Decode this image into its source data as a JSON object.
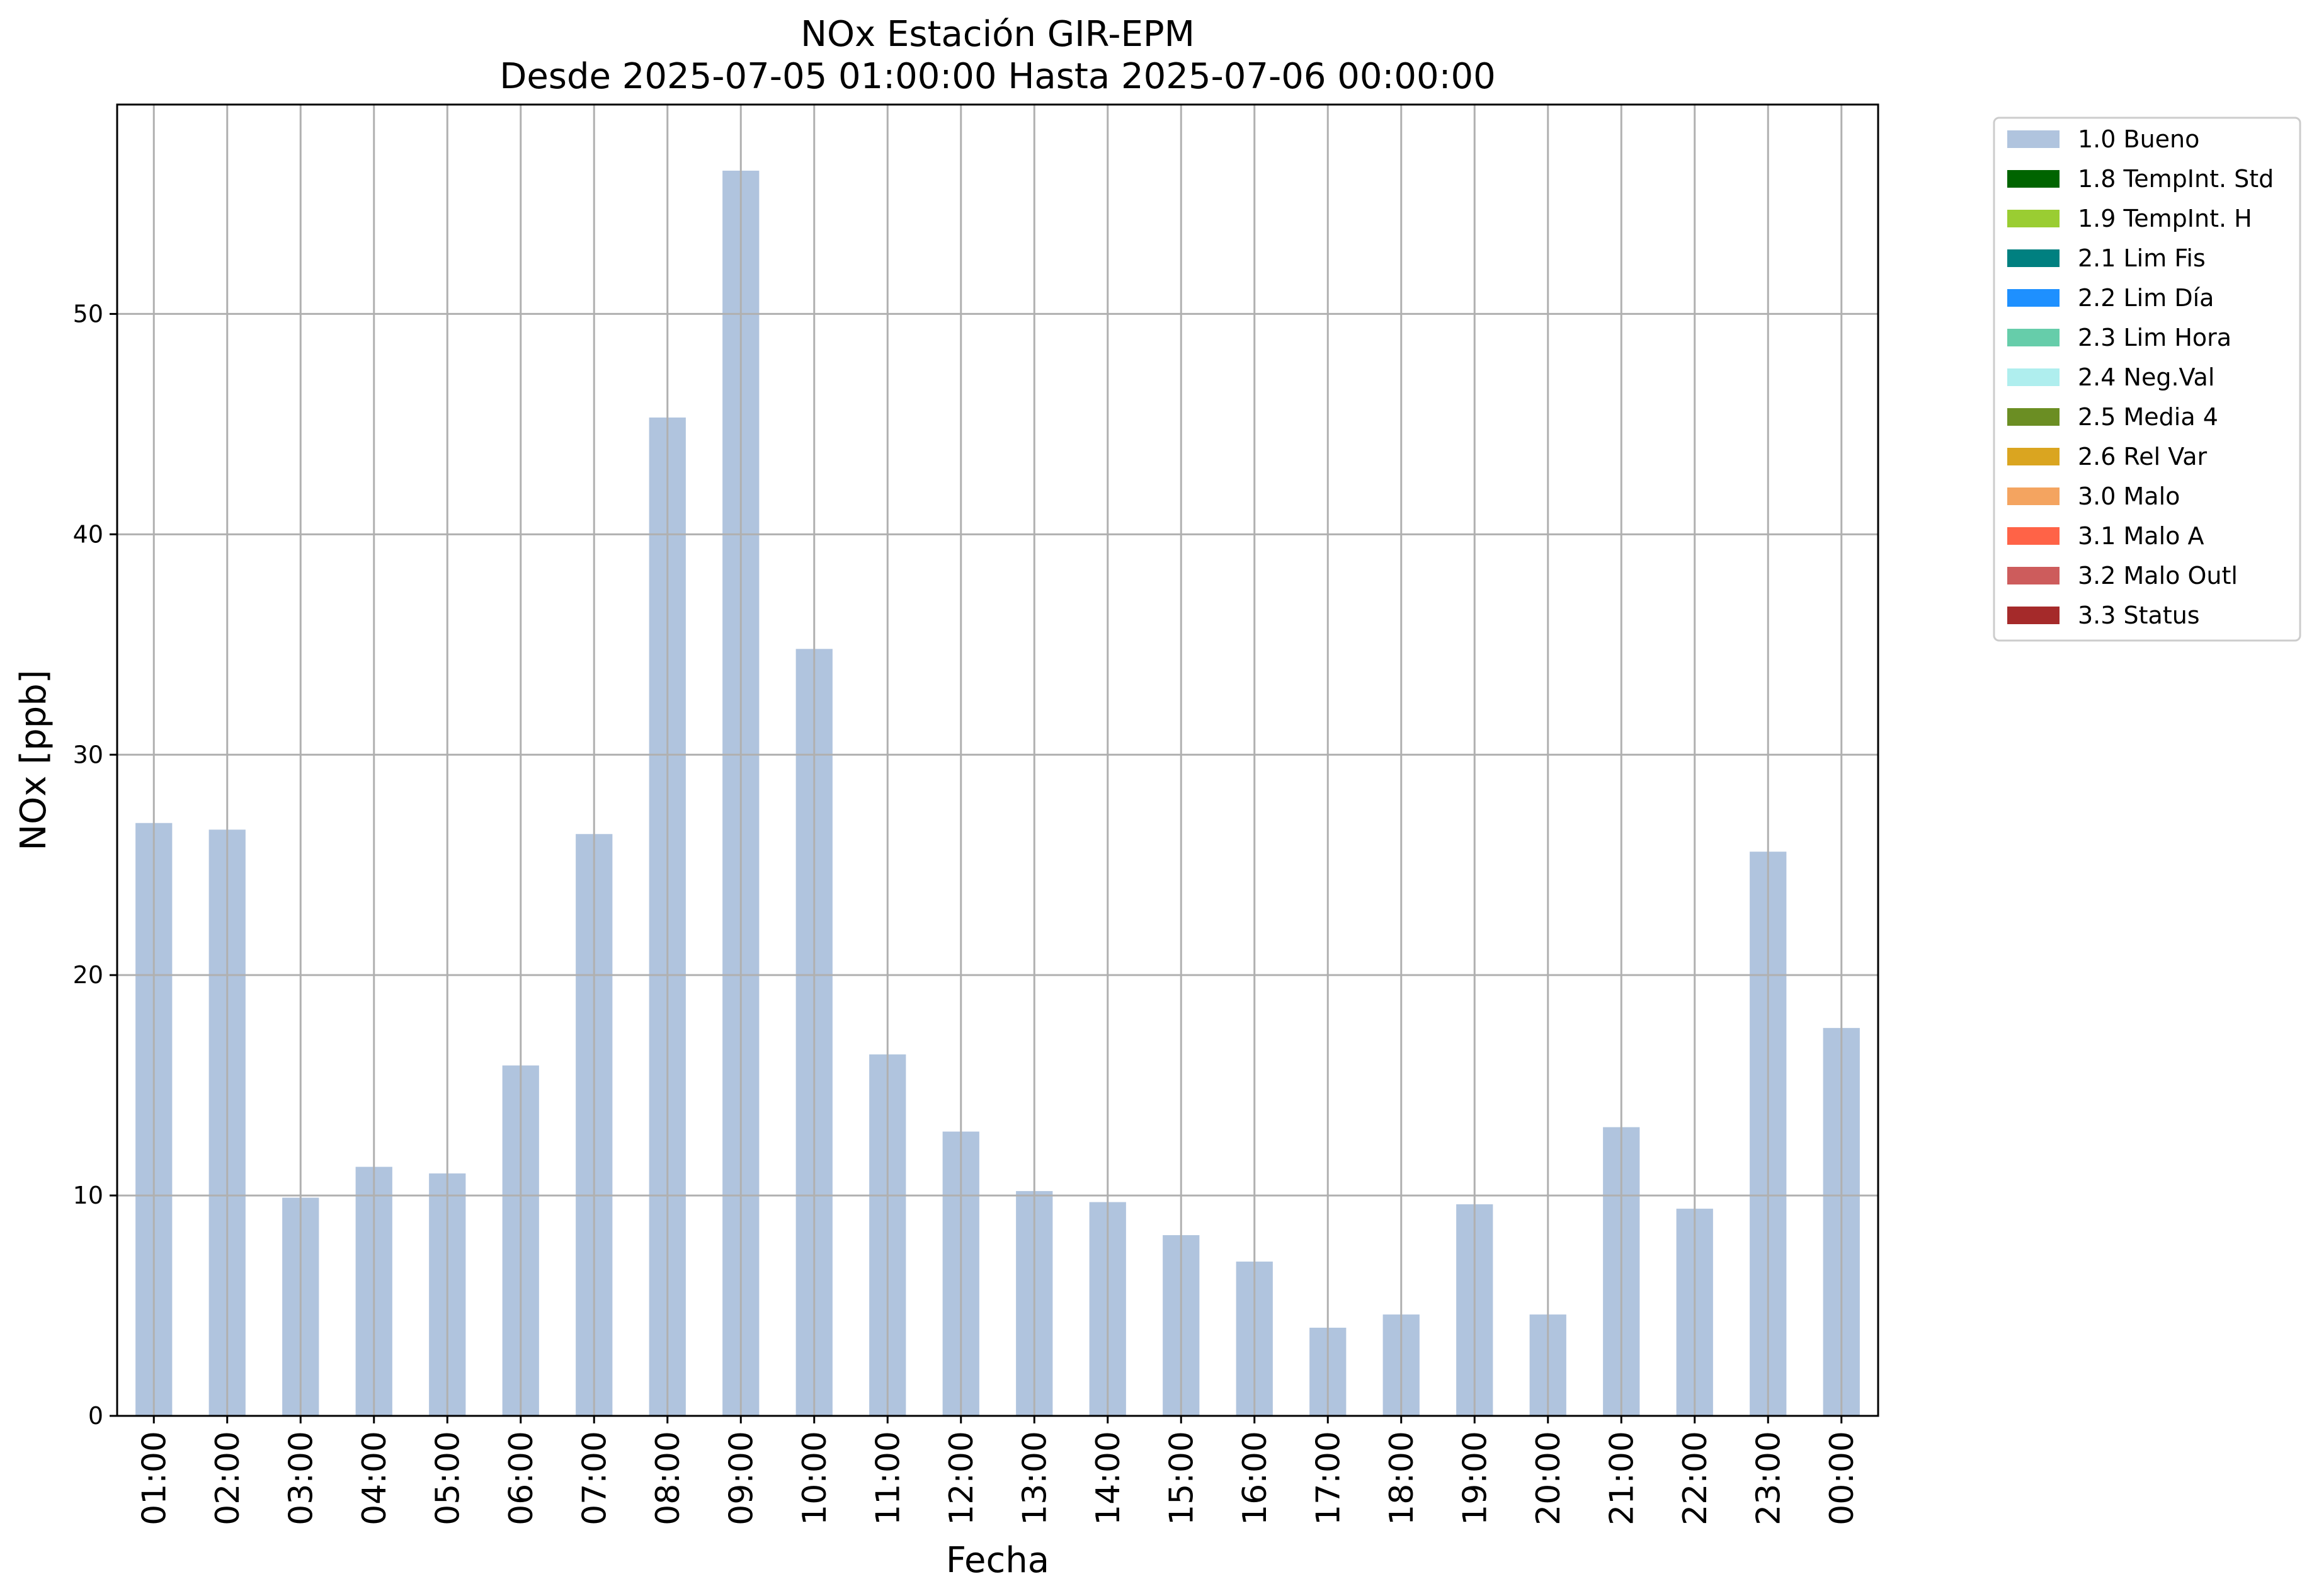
{
  "chart_data": {
    "type": "bar",
    "title": "NOx Estación GIR-EPM",
    "subtitle": "Desde 2025-07-05 01:00:00 Hasta 2025-07-06 00:00:00",
    "xlabel": "Fecha",
    "ylabel": "NOx [ppb]",
    "ylim": [
      0,
      59.5
    ],
    "yticks": [
      0,
      10,
      20,
      30,
      40,
      50
    ],
    "grid": true,
    "legend_position": "outside-top-right",
    "categories": [
      "01:00",
      "02:00",
      "03:00",
      "04:00",
      "05:00",
      "06:00",
      "07:00",
      "08:00",
      "09:00",
      "10:00",
      "11:00",
      "12:00",
      "13:00",
      "14:00",
      "15:00",
      "16:00",
      "17:00",
      "18:00",
      "19:00",
      "20:00",
      "21:00",
      "22:00",
      "23:00",
      "00:00"
    ],
    "series": [
      {
        "name": "1.0 Bueno",
        "color": "#b0c4de",
        "values": [
          26.9,
          26.6,
          9.9,
          11.3,
          11.0,
          15.9,
          26.4,
          45.3,
          56.5,
          34.8,
          16.4,
          12.9,
          10.2,
          9.7,
          8.2,
          7.0,
          4.0,
          4.6,
          9.6,
          4.6,
          13.1,
          9.4,
          25.6,
          17.6
        ]
      }
    ],
    "legend": [
      {
        "label": "1.0 Bueno",
        "color": "#b0c4de"
      },
      {
        "label": "1.8 TempInt. Std",
        "color": "#006400"
      },
      {
        "label": "1.9 TempInt. H",
        "color": "#9acd32"
      },
      {
        "label": "2.1 Lim Fis",
        "color": "#008080"
      },
      {
        "label": "2.2 Lim Día",
        "color": "#1e90ff"
      },
      {
        "label": "2.3 Lim Hora",
        "color": "#66cdaa"
      },
      {
        "label": "2.4 Neg.Val",
        "color": "#afeeee"
      },
      {
        "label": "2.5 Media 4",
        "color": "#6b8e23"
      },
      {
        "label": "2.6 Rel Var",
        "color": "#daa520"
      },
      {
        "label": "3.0 Malo",
        "color": "#f4a460"
      },
      {
        "label": "3.1 Malo A",
        "color": "#ff6347"
      },
      {
        "label": "3.2 Malo Outl",
        "color": "#cd5c5c"
      },
      {
        "label": "3.3 Status",
        "color": "#a52a2a"
      }
    ]
  }
}
